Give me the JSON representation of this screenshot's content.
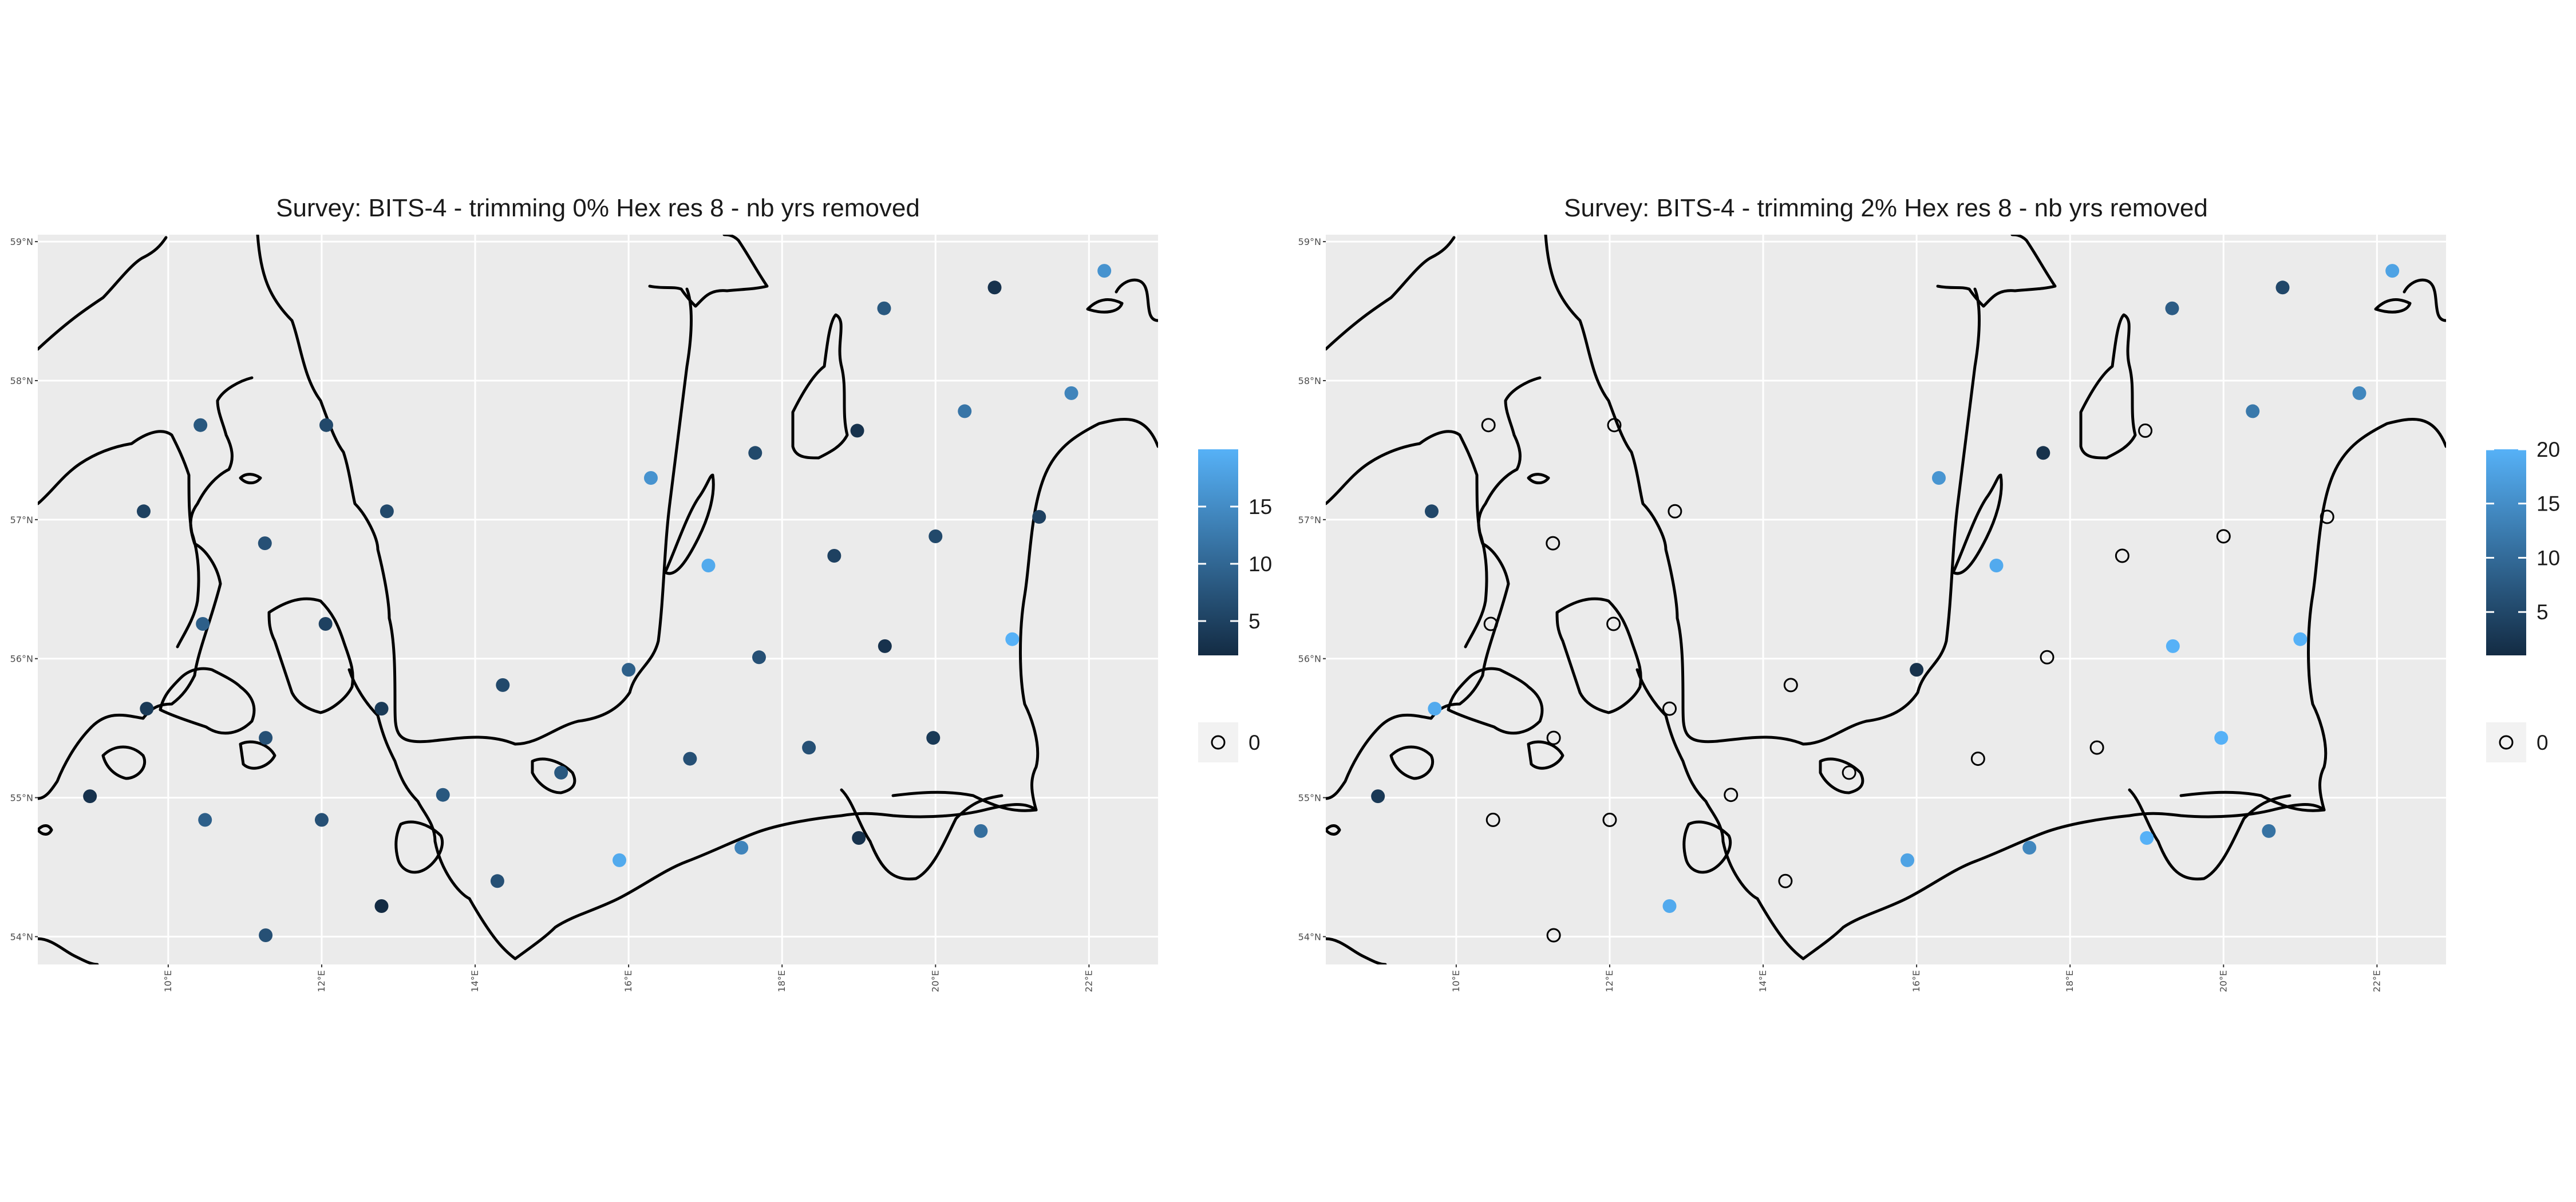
{
  "chart_data": [
    {
      "type": "scatter",
      "title": "Survey: BITS-4 - trimming 0% Hex res 8 - nb yrs removed",
      "x_ticks": [
        "10°E",
        "12°E",
        "14°E",
        "16°E",
        "18°E",
        "20°E",
        "22°E"
      ],
      "y_ticks": [
        "54°N",
        "55°N",
        "56°N",
        "57°N",
        "58°N",
        "59°N"
      ],
      "xlim": [
        8.3,
        22.9
      ],
      "ylim": [
        53.8,
        59.05
      ],
      "legend_position": "right",
      "colorbar": {
        "min": 2,
        "max": 20,
        "ticks": [
          "5",
          "10",
          "15"
        ],
        "low_color": "#132B43",
        "high_color": "#56B1F7"
      },
      "zero_legend": {
        "label": "0"
      },
      "points": [
        {
          "lon": 8.98,
          "lat": 55.01,
          "value": 3
        },
        {
          "lon": 9.68,
          "lat": 57.06,
          "value": 5
        },
        {
          "lon": 9.72,
          "lat": 55.64,
          "value": 4
        },
        {
          "lon": 10.42,
          "lat": 57.68,
          "value": 8
        },
        {
          "lon": 10.45,
          "lat": 56.25,
          "value": 9
        },
        {
          "lon": 10.48,
          "lat": 54.84,
          "value": 9
        },
        {
          "lon": 11.26,
          "lat": 56.83,
          "value": 7
        },
        {
          "lon": 11.27,
          "lat": 55.43,
          "value": 7
        },
        {
          "lon": 11.27,
          "lat": 54.01,
          "value": 7
        },
        {
          "lon": 12.06,
          "lat": 57.68,
          "value": 6
        },
        {
          "lon": 12.05,
          "lat": 56.25,
          "value": 5
        },
        {
          "lon": 12.0,
          "lat": 54.84,
          "value": 7
        },
        {
          "lon": 12.85,
          "lat": 57.06,
          "value": 6
        },
        {
          "lon": 12.78,
          "lat": 55.64,
          "value": 4
        },
        {
          "lon": 12.78,
          "lat": 54.22,
          "value": 2
        },
        {
          "lon": 13.58,
          "lat": 55.02,
          "value": 8
        },
        {
          "lon": 14.36,
          "lat": 55.81,
          "value": 6
        },
        {
          "lon": 14.29,
          "lat": 54.4,
          "value": 7
        },
        {
          "lon": 15.12,
          "lat": 55.18,
          "value": 8
        },
        {
          "lon": 15.88,
          "lat": 54.55,
          "value": 19
        },
        {
          "lon": 16.0,
          "lat": 55.92,
          "value": 9
        },
        {
          "lon": 16.29,
          "lat": 57.3,
          "value": 16
        },
        {
          "lon": 16.8,
          "lat": 55.28,
          "value": 7
        },
        {
          "lon": 17.04,
          "lat": 56.67,
          "value": 19
        },
        {
          "lon": 17.47,
          "lat": 54.64,
          "value": 14
        },
        {
          "lon": 17.65,
          "lat": 57.48,
          "value": 6
        },
        {
          "lon": 17.7,
          "lat": 56.01,
          "value": 7
        },
        {
          "lon": 18.35,
          "lat": 55.36,
          "value": 7
        },
        {
          "lon": 18.68,
          "lat": 56.74,
          "value": 5
        },
        {
          "lon": 18.98,
          "lat": 57.64,
          "value": 3
        },
        {
          "lon": 19.0,
          "lat": 54.71,
          "value": 3
        },
        {
          "lon": 19.33,
          "lat": 58.52,
          "value": 8
        },
        {
          "lon": 19.34,
          "lat": 56.09,
          "value": 3
        },
        {
          "lon": 19.97,
          "lat": 55.43,
          "value": 4
        },
        {
          "lon": 20.0,
          "lat": 56.88,
          "value": 6
        },
        {
          "lon": 20.38,
          "lat": 57.78,
          "value": 12
        },
        {
          "lon": 20.59,
          "lat": 54.76,
          "value": 11
        },
        {
          "lon": 20.77,
          "lat": 58.67,
          "value": 3
        },
        {
          "lon": 21.0,
          "lat": 56.14,
          "value": 20
        },
        {
          "lon": 21.35,
          "lat": 57.02,
          "value": 5
        },
        {
          "lon": 21.77,
          "lat": 57.91,
          "value": 14
        },
        {
          "lon": 22.2,
          "lat": 58.79,
          "value": 16
        }
      ]
    },
    {
      "type": "scatter",
      "title": "Survey: BITS-4 - trimming 2% Hex res 8 - nb yrs removed",
      "x_ticks": [
        "10°E",
        "12°E",
        "14°E",
        "16°E",
        "18°E",
        "20°E",
        "22°E"
      ],
      "y_ticks": [
        "54°N",
        "55°N",
        "56°N",
        "57°N",
        "58°N",
        "59°N"
      ],
      "xlim": [
        8.3,
        22.9
      ],
      "ylim": [
        53.8,
        59.05
      ],
      "legend_position": "right",
      "colorbar": {
        "min": 1,
        "max": 20,
        "ticks": [
          "5",
          "10",
          "15",
          "20"
        ],
        "low_color": "#132B43",
        "high_color": "#56B1F7"
      },
      "zero_legend": {
        "label": "0"
      },
      "points": [
        {
          "lon": 8.98,
          "lat": 55.01,
          "value": 3
        },
        {
          "lon": 9.68,
          "lat": 57.06,
          "value": 5
        },
        {
          "lon": 9.72,
          "lat": 55.64,
          "value": 19
        },
        {
          "lon": 10.42,
          "lat": 57.68,
          "value": 0
        },
        {
          "lon": 10.45,
          "lat": 56.25,
          "value": 0
        },
        {
          "lon": 10.48,
          "lat": 54.84,
          "value": 0
        },
        {
          "lon": 11.26,
          "lat": 56.83,
          "value": 0
        },
        {
          "lon": 11.27,
          "lat": 55.43,
          "value": 0
        },
        {
          "lon": 11.27,
          "lat": 54.01,
          "value": 0
        },
        {
          "lon": 12.06,
          "lat": 57.68,
          "value": 0
        },
        {
          "lon": 12.05,
          "lat": 56.25,
          "value": 0
        },
        {
          "lon": 12.0,
          "lat": 54.84,
          "value": 0
        },
        {
          "lon": 12.85,
          "lat": 57.06,
          "value": 0
        },
        {
          "lon": 12.78,
          "lat": 55.64,
          "value": 0
        },
        {
          "lon": 12.78,
          "lat": 54.22,
          "value": 19
        },
        {
          "lon": 13.58,
          "lat": 55.02,
          "value": 0
        },
        {
          "lon": 14.36,
          "lat": 55.81,
          "value": 0
        },
        {
          "lon": 14.29,
          "lat": 54.4,
          "value": 0
        },
        {
          "lon": 15.12,
          "lat": 55.18,
          "value": 0
        },
        {
          "lon": 15.88,
          "lat": 54.55,
          "value": 18
        },
        {
          "lon": 16.0,
          "lat": 55.92,
          "value": 2
        },
        {
          "lon": 16.29,
          "lat": 57.3,
          "value": 16
        },
        {
          "lon": 16.8,
          "lat": 55.28,
          "value": 0
        },
        {
          "lon": 17.04,
          "lat": 56.67,
          "value": 19
        },
        {
          "lon": 17.47,
          "lat": 54.64,
          "value": 14
        },
        {
          "lon": 17.65,
          "lat": 57.48,
          "value": 2
        },
        {
          "lon": 17.7,
          "lat": 56.01,
          "value": 0
        },
        {
          "lon": 18.35,
          "lat": 55.36,
          "value": 0
        },
        {
          "lon": 18.68,
          "lat": 56.74,
          "value": 0
        },
        {
          "lon": 18.98,
          "lat": 57.64,
          "value": 0
        },
        {
          "lon": 19.0,
          "lat": 54.71,
          "value": 20
        },
        {
          "lon": 19.33,
          "lat": 58.52,
          "value": 8
        },
        {
          "lon": 19.34,
          "lat": 56.09,
          "value": 20
        },
        {
          "lon": 19.97,
          "lat": 55.43,
          "value": 20
        },
        {
          "lon": 20.0,
          "lat": 56.88,
          "value": 0
        },
        {
          "lon": 20.38,
          "lat": 57.78,
          "value": 12
        },
        {
          "lon": 20.59,
          "lat": 54.76,
          "value": 11
        },
        {
          "lon": 20.77,
          "lat": 58.67,
          "value": 5
        },
        {
          "lon": 21.0,
          "lat": 56.14,
          "value": 20
        },
        {
          "lon": 21.35,
          "lat": 57.02,
          "value": 0
        },
        {
          "lon": 21.77,
          "lat": 57.91,
          "value": 14
        },
        {
          "lon": 22.2,
          "lat": 58.79,
          "value": 18
        }
      ]
    }
  ]
}
